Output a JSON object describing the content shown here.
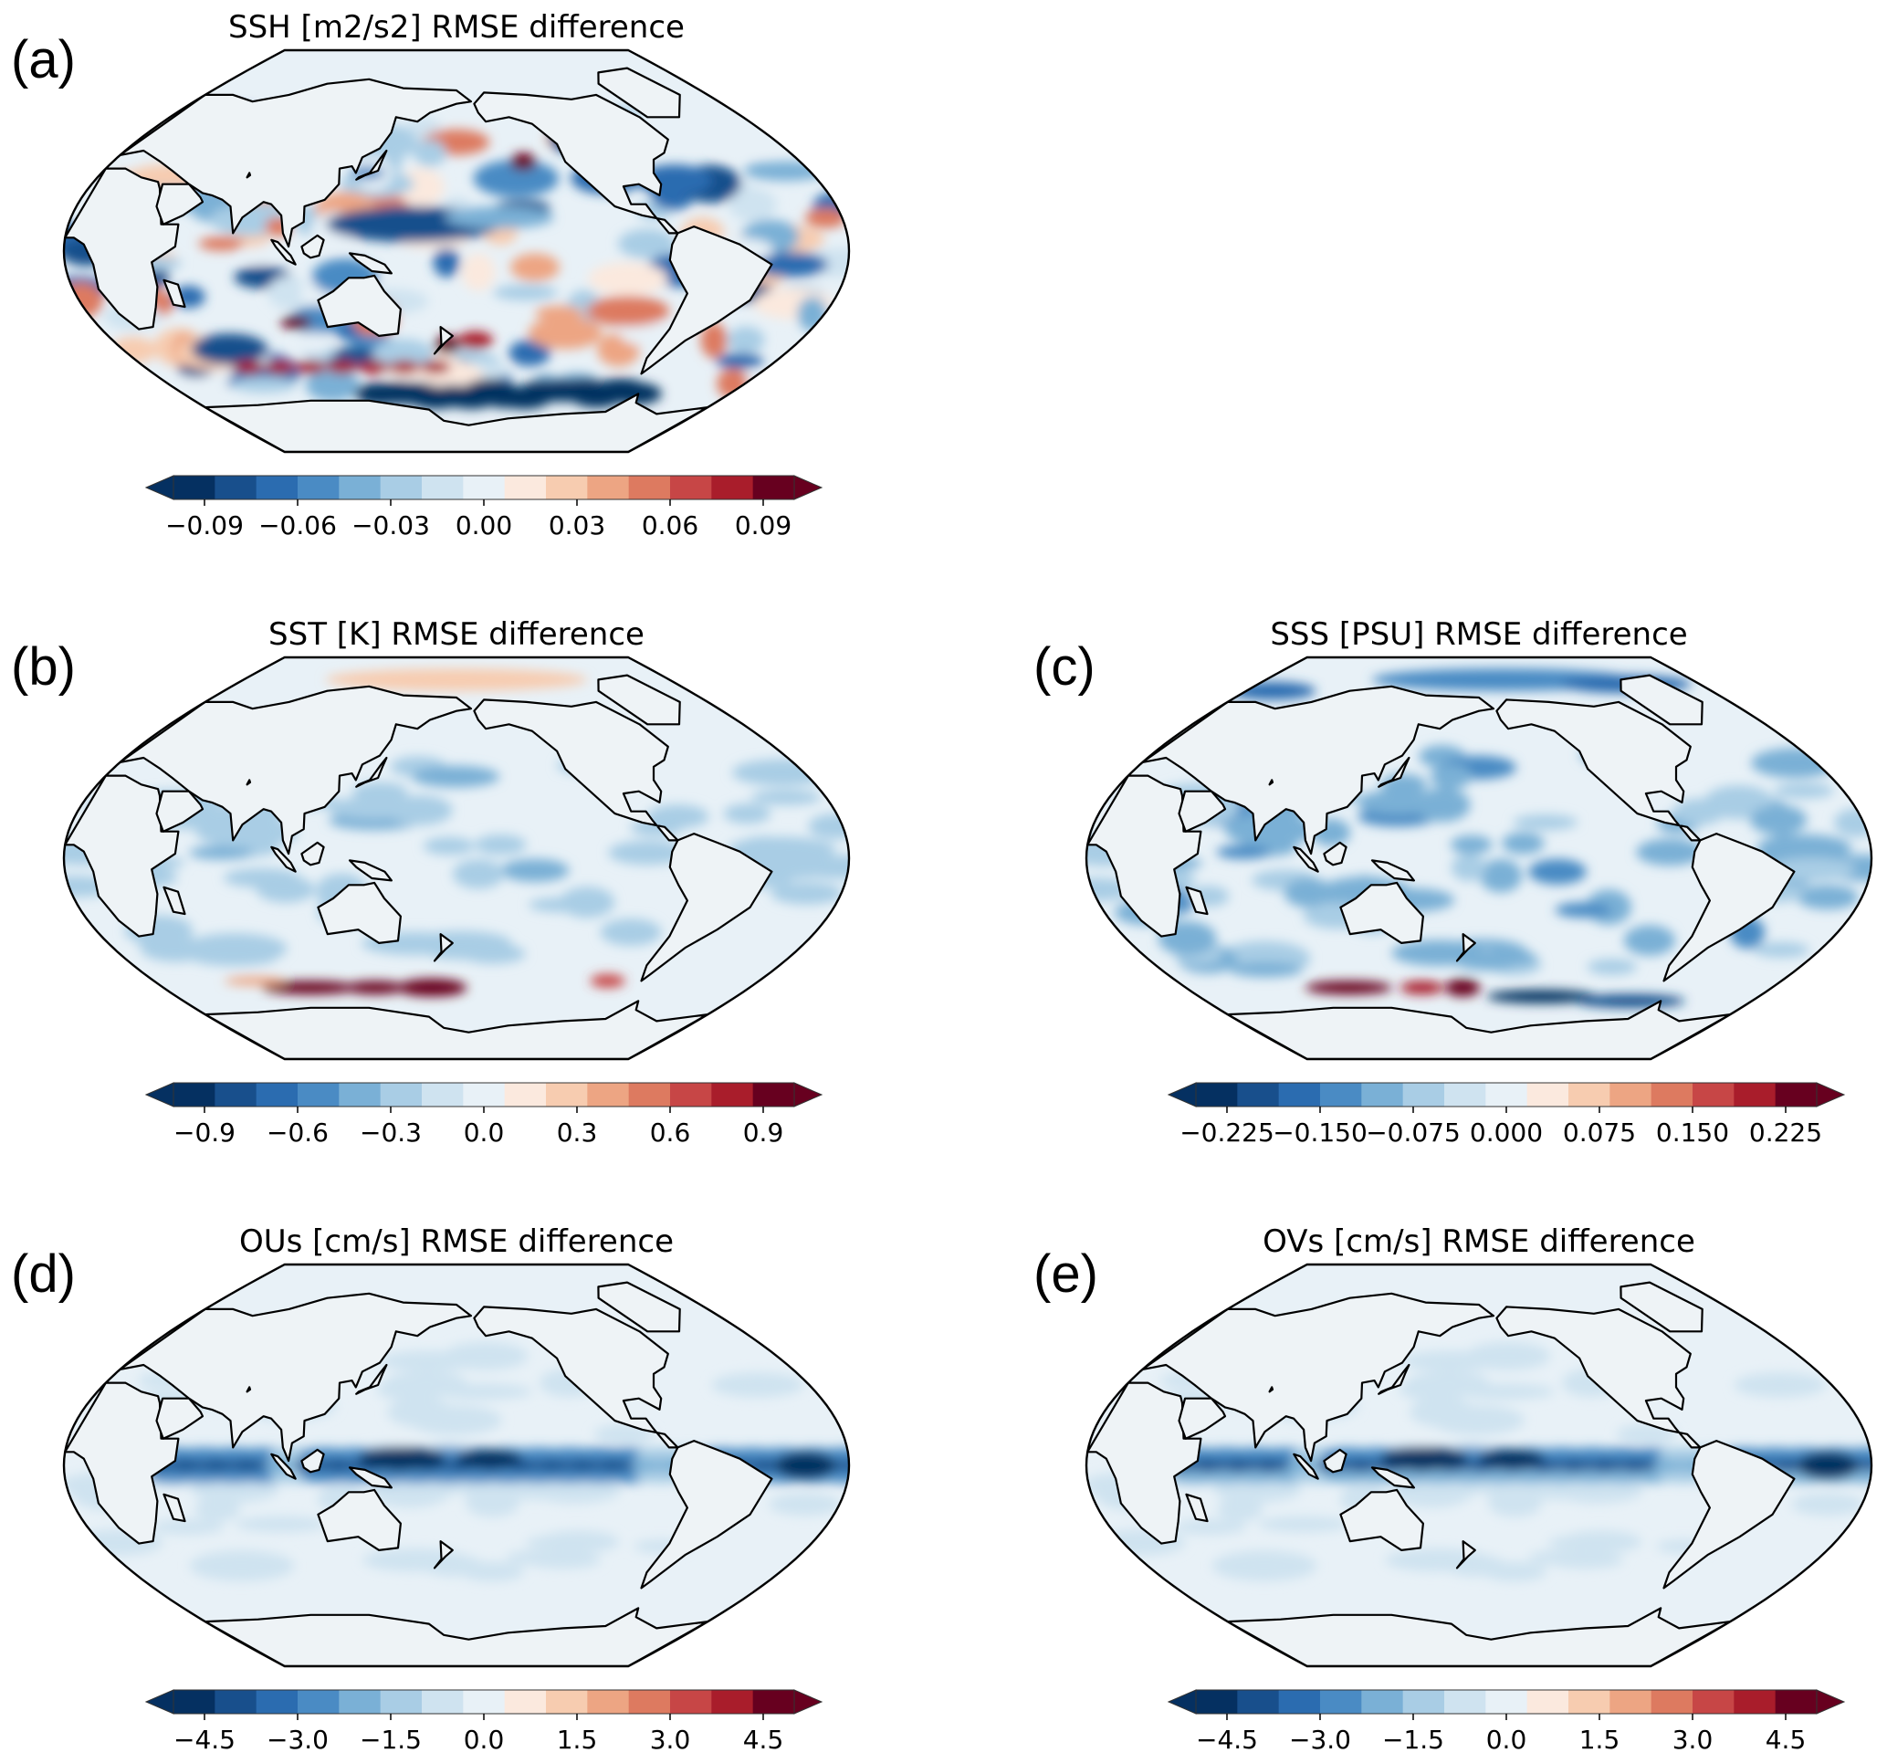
{
  "figure": {
    "panels": [
      {
        "id": "a",
        "letter": "(a)",
        "title": "SSH [m2/s2] RMSE difference",
        "colorbar": {
          "range": [
            -0.1,
            0.1
          ],
          "ticks": [
            -0.09,
            -0.06,
            -0.03,
            0.0,
            0.03,
            0.06,
            0.09
          ],
          "tick_labels": [
            "−0.09",
            "−0.06",
            "−0.03",
            "0.00",
            "0.03",
            "0.06",
            "0.09"
          ],
          "extend": "both"
        },
        "pattern": "ssh"
      },
      {
        "id": "b",
        "letter": "(b)",
        "title": "SST [K] RMSE difference",
        "colorbar": {
          "range": [
            -1.0,
            1.0
          ],
          "ticks": [
            -0.9,
            -0.6,
            -0.3,
            0.0,
            0.3,
            0.6,
            0.9
          ],
          "tick_labels": [
            "−0.9",
            "−0.6",
            "−0.3",
            "0.0",
            "0.3",
            "0.6",
            "0.9"
          ],
          "extend": "both"
        },
        "pattern": "sst"
      },
      {
        "id": "c",
        "letter": "(c)",
        "title": "SSS [PSU] RMSE difference",
        "colorbar": {
          "range": [
            -0.25,
            0.25
          ],
          "ticks": [
            -0.225,
            -0.15,
            -0.075,
            0.0,
            0.075,
            0.15,
            0.225
          ],
          "tick_labels": [
            "−0.225",
            "−0.150",
            "−0.075",
            "0.000",
            "0.075",
            "0.150",
            "0.225"
          ],
          "extend": "both"
        },
        "pattern": "sss"
      },
      {
        "id": "d",
        "letter": "(d)",
        "title": "OUs [cm/s] RMSE difference",
        "colorbar": {
          "range": [
            -5.0,
            5.0
          ],
          "ticks": [
            -4.5,
            -3.0,
            -1.5,
            0.0,
            1.5,
            3.0,
            4.5
          ],
          "tick_labels": [
            "−4.5",
            "−3.0",
            "−1.5",
            "0.0",
            "1.5",
            "3.0",
            "4.5"
          ],
          "extend": "both"
        },
        "pattern": "ous"
      },
      {
        "id": "e",
        "letter": "(e)",
        "title": "OVs [cm/s] RMSE difference",
        "colorbar": {
          "range": [
            -5.0,
            5.0
          ],
          "ticks": [
            -4.5,
            -3.0,
            -1.5,
            0.0,
            1.5,
            3.0,
            4.5
          ],
          "tick_labels": [
            "−4.5",
            "−3.0",
            "−1.5",
            "0.0",
            "1.5",
            "3.0",
            "4.5"
          ],
          "extend": "both"
        },
        "pattern": "ovs"
      }
    ],
    "colormap": [
      "#053061",
      "#184f8c",
      "#2b6cb0",
      "#4a8bc4",
      "#7ab0d6",
      "#a9cde5",
      "#cfe3f0",
      "#e8f1f7",
      "#fbe9de",
      "#f7ccb0",
      "#eda583",
      "#dd7a60",
      "#c74646",
      "#a91d2b",
      "#67001f"
    ],
    "land_color": "#eef3f6"
  }
}
